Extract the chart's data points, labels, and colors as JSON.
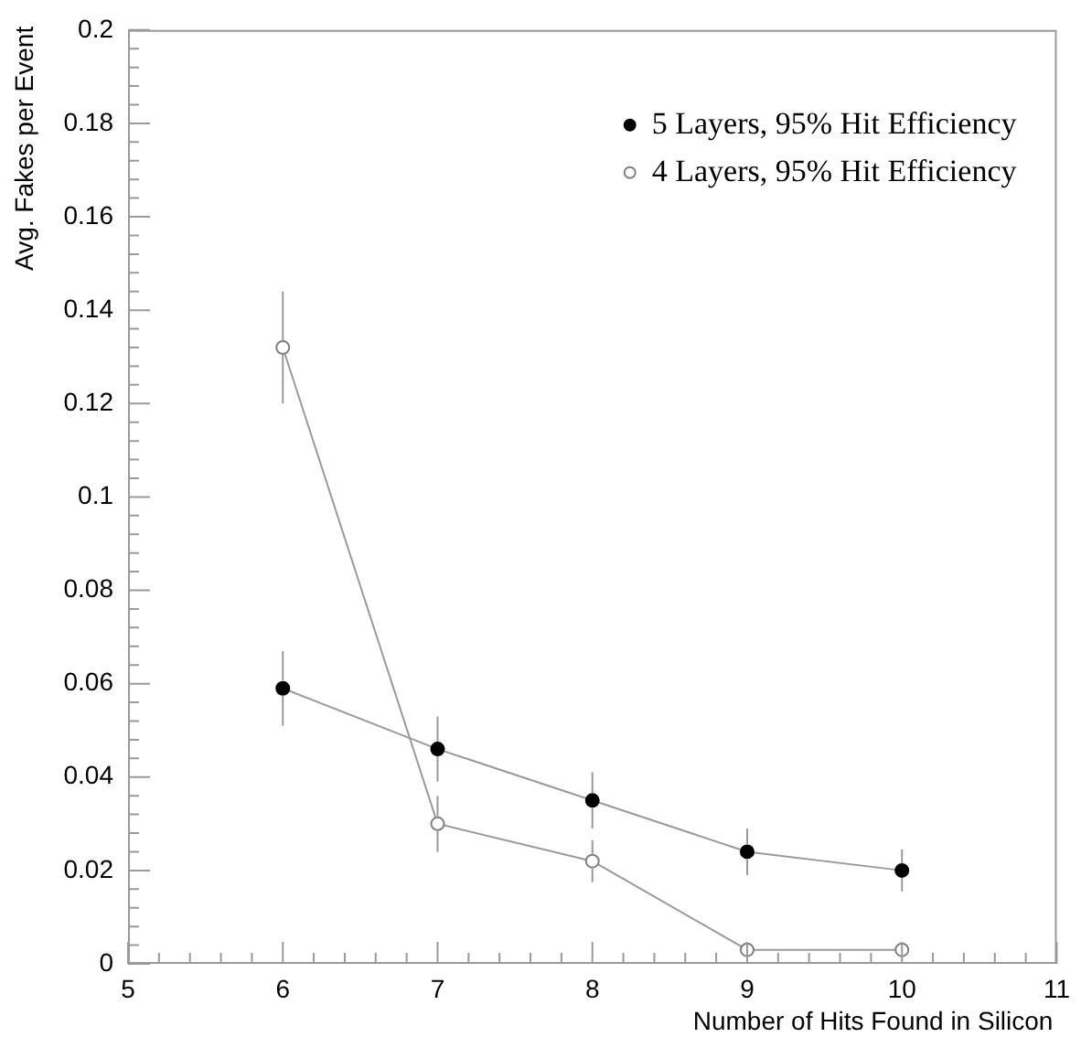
{
  "chart_data": {
    "type": "line",
    "xlabel": "Number of Hits Found in Silicon",
    "ylabel": "Avg. Fakes per Event",
    "x": [
      6,
      7,
      8,
      9,
      10
    ],
    "series": [
      {
        "name": "5 Layers, 95% Hit Efficiency",
        "color": "#000000",
        "values": [
          0.059,
          0.046,
          0.035,
          0.024,
          0.02
        ],
        "errors": [
          0.008,
          0.007,
          0.006,
          0.005,
          0.0045
        ]
      },
      {
        "name": "4 Layers, 95% Hit Efficiency",
        "color": "#808080",
        "values": [
          0.132,
          0.03,
          0.022,
          0.003,
          0.003
        ],
        "errors": [
          0.012,
          0.006,
          0.0045,
          null,
          null
        ]
      }
    ],
    "xlim": [
      5,
      11
    ],
    "xticks": [
      5,
      6,
      7,
      8,
      9,
      10,
      11
    ],
    "ylim": [
      0,
      0.2
    ],
    "yticks": [
      0,
      0.02,
      0.04,
      0.06,
      0.08,
      0.1,
      0.12,
      0.14,
      0.16,
      0.18,
      0.2
    ],
    "grid": false,
    "legend": "top right",
    "marker": "circle"
  }
}
